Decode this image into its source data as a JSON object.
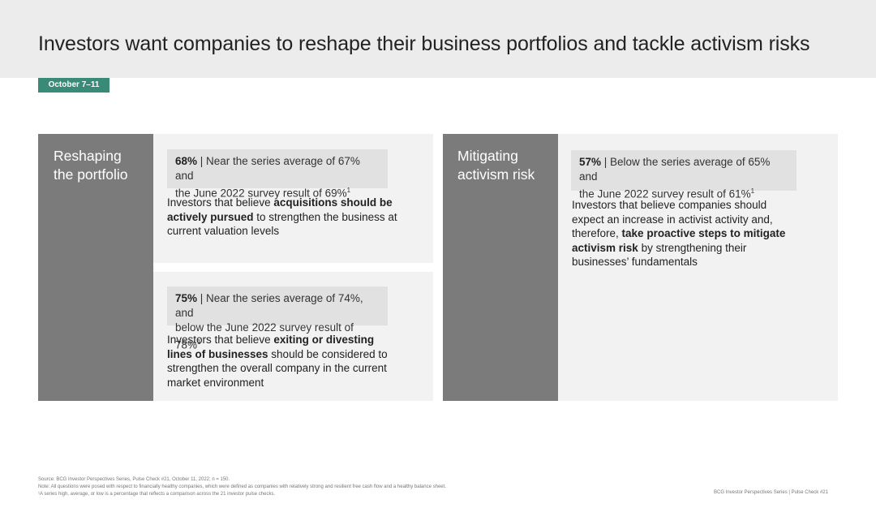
{
  "page": {
    "title": "Investors want companies to reshape their business portfolios and tackle activism risks",
    "date_badge": "October 7–11"
  },
  "reshaping": {
    "label_line1": "Reshaping",
    "label_line2": "the portfolio",
    "card1": {
      "stat_pct": "68%",
      "stat_line1": " | Near the series average of 67% and",
      "stat_line2": "the June 2022 survey result of 69%",
      "stat_sup": "1",
      "desc_pre": "Investors that believe ",
      "desc_bold1": "acquisitions should be",
      "desc_bold2": "actively pursued",
      "desc_post1": " to strengthen the business at",
      "desc_line3": "current valuation levels"
    },
    "card2": {
      "stat_pct": "75%",
      "stat_line1": " | Near the series average of 74%, and",
      "stat_line2": "below the June 2022 survey result of 78%",
      "stat_sup": "1",
      "desc_pre": "Investors that believe ",
      "desc_bold1": "exiting or divesting",
      "desc_bold2": "lines of businesses",
      "desc_post1": " should be considered to",
      "desc_line3": "strengthen the overall company in the current",
      "desc_line4": "market environment"
    }
  },
  "mitigating": {
    "label_line1": "Mitigating",
    "label_line2": "activism risk",
    "card": {
      "stat_pct": "57%",
      "stat_line1": " | Below the series average of 65% and",
      "stat_line2": "the June 2022 survey result of 61%",
      "stat_sup": "1",
      "desc_line1": "Investors that believe companies should",
      "desc_line2": "expect an increase in activist activity and,",
      "desc_pre3": "therefore, ",
      "desc_bold3": "take proactive steps to mitigate",
      "desc_bold4": "activism risk",
      "desc_post4": " by strengthening their",
      "desc_line5": "businesses’ fundamentals"
    }
  },
  "footer": {
    "source": "Source: BCG Investor Perspectives Series, Pulse Check #21, October 11, 2022; n = 150.",
    "note": "Note: All questions were posed with respect to financially healthy companies, which were defined as companies with relatively strong and resilient free cash flow and a healthy balance sheet.",
    "footnote1": "¹A series high, average, or low is a percentage that reflects a comparison across the 21 investor pulse checks.",
    "right": "BCG Investor Perspectives Series | Pulse Check #21"
  },
  "colors": {
    "accent_badge": "#3a8a78",
    "side_panel": "#7b7b7b",
    "card_bg": "#f2f2f2",
    "stat_bg": "#e1e1e1",
    "header_bg": "#ececec"
  }
}
